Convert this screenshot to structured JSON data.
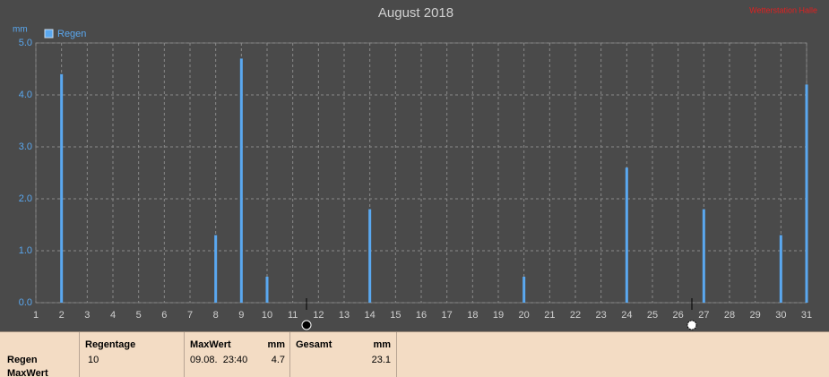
{
  "chart_data": {
    "type": "bar",
    "title": "August 2018",
    "station": "Wetterstation Halle",
    "y_unit": "mm",
    "series": [
      {
        "name": "Regen",
        "color": "#5aa8f0",
        "x": [
          2,
          8,
          9,
          10,
          14,
          20,
          24,
          27,
          30,
          31
        ],
        "values": [
          4.4,
          1.3,
          4.7,
          0.5,
          1.8,
          0.5,
          2.6,
          1.8,
          1.3,
          4.2
        ]
      }
    ],
    "xlim": [
      1,
      31
    ],
    "xticks": [
      1,
      2,
      3,
      4,
      5,
      6,
      7,
      8,
      9,
      10,
      11,
      12,
      13,
      14,
      15,
      16,
      17,
      18,
      19,
      20,
      21,
      22,
      23,
      24,
      25,
      26,
      27,
      28,
      29,
      30,
      31
    ],
    "ylim": [
      0,
      5
    ],
    "yticks": [
      {
        "value": 0,
        "label": "0.0"
      },
      {
        "value": 1,
        "label": "1.0"
      },
      {
        "value": 2,
        "label": "2.0"
      },
      {
        "value": 3,
        "label": "3.0"
      },
      {
        "value": 4,
        "label": "4.0"
      },
      {
        "value": 5,
        "label": "5.0"
      }
    ],
    "grid": true,
    "legend": "top-left"
  },
  "summary": {
    "row_labels": [
      "Regen",
      "MaxWert"
    ],
    "regentage": {
      "header": "Regentage",
      "value": "10"
    },
    "maxwert": {
      "header": "MaxWert",
      "unit": "mm",
      "time": "09.08.  23:40",
      "value": "4.7"
    },
    "gesamt": {
      "header": "Gesamt",
      "unit": "mm",
      "value": "23.1"
    }
  }
}
